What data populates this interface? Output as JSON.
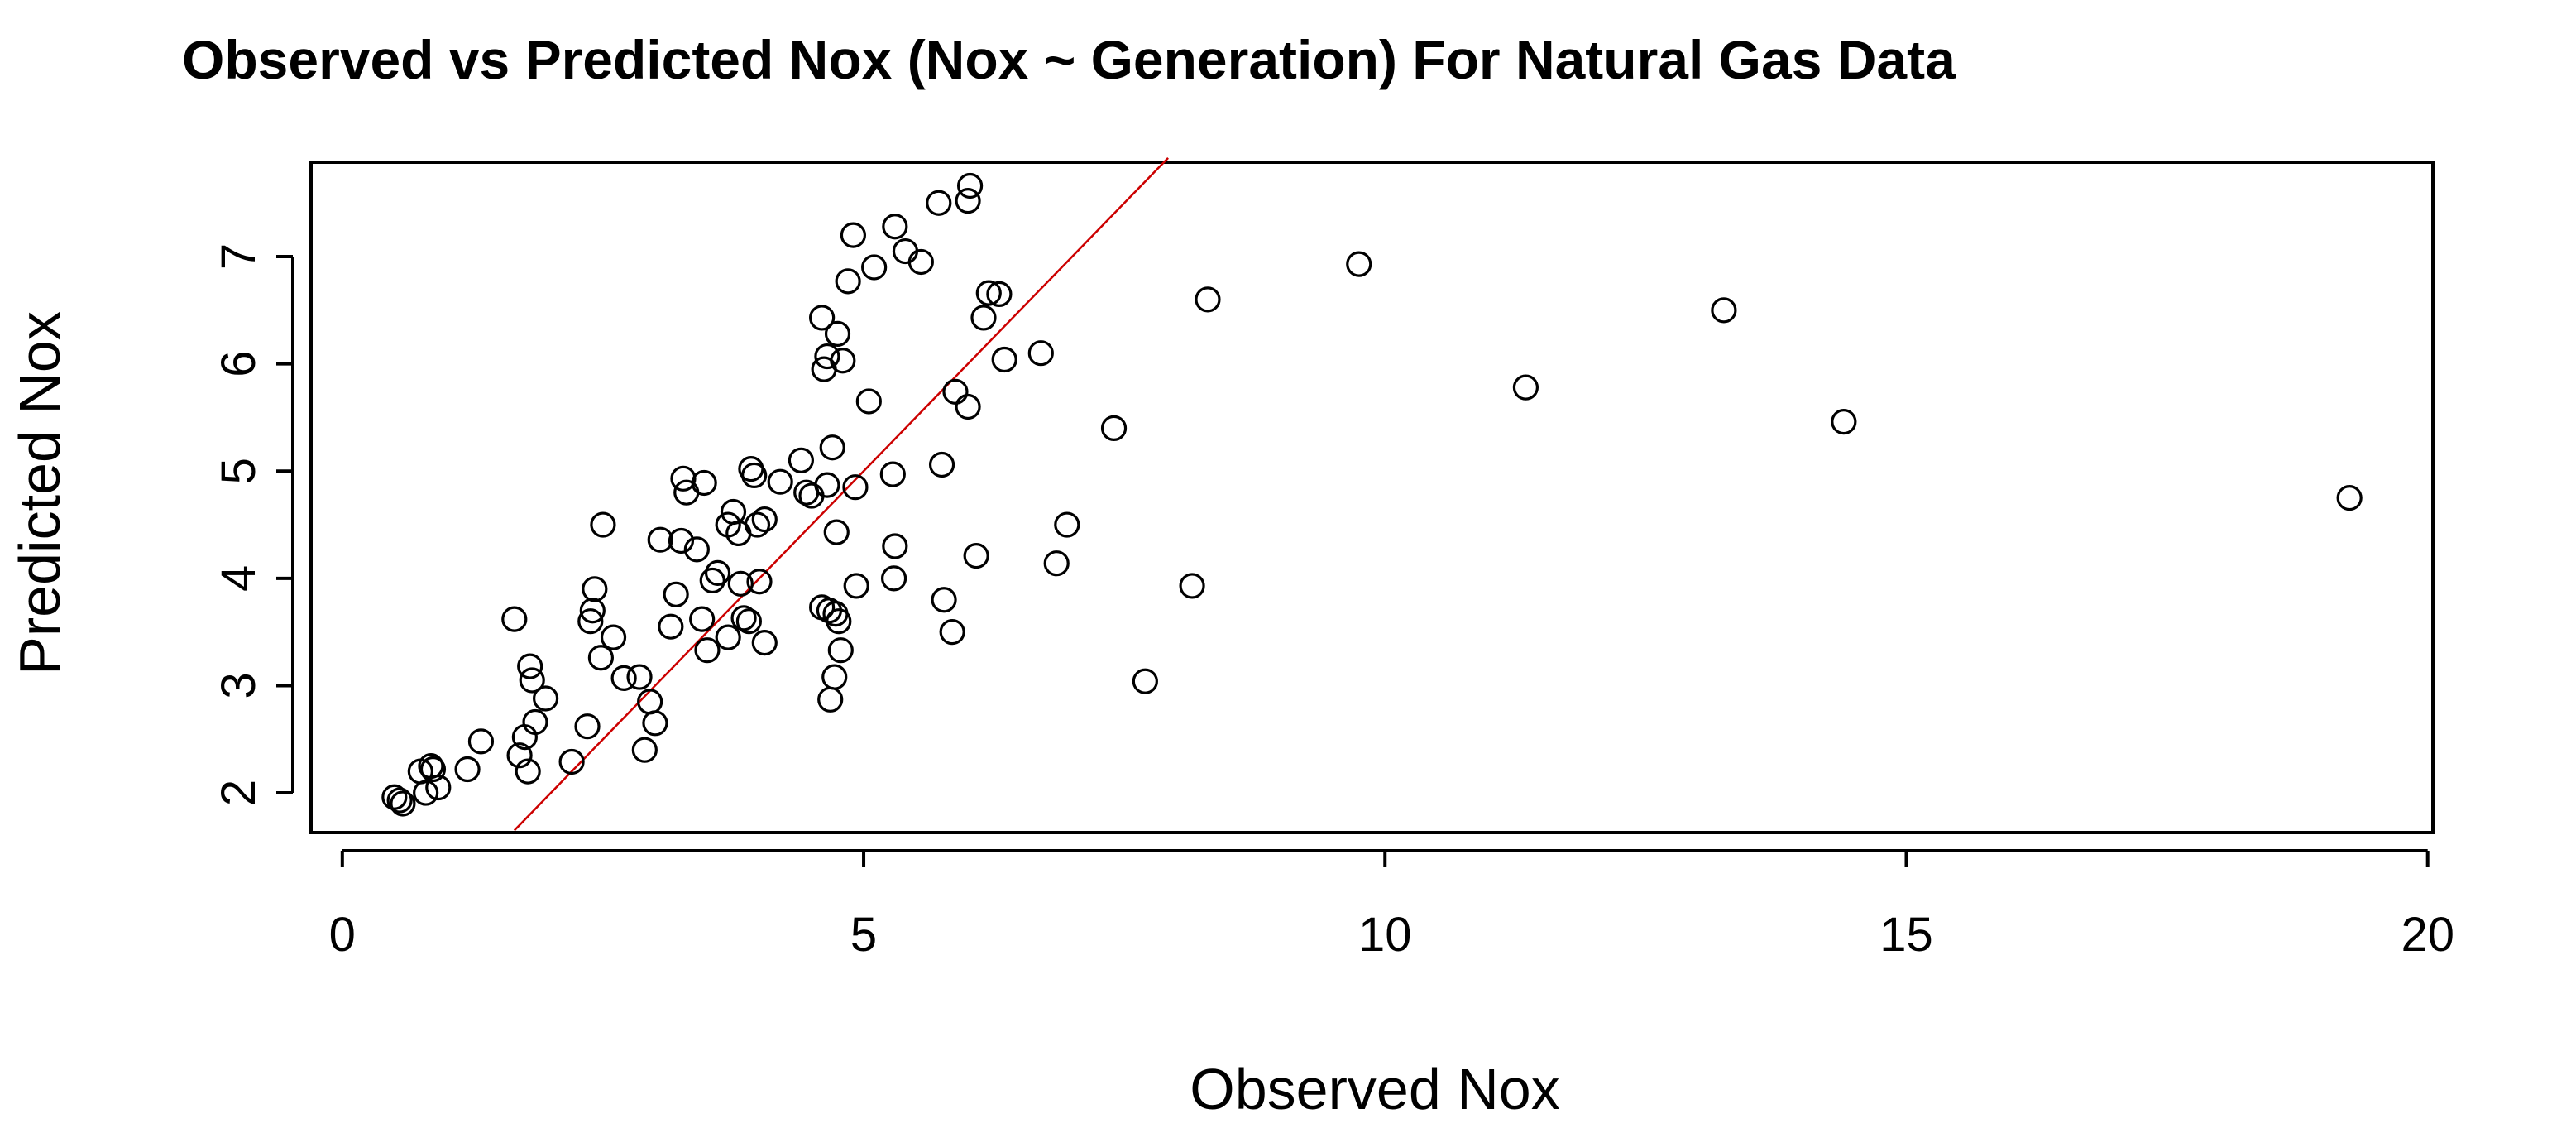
{
  "chart_data": {
    "type": "scatter",
    "title": "Observed vs Predicted Nox (Nox ~ Generation) For Natural Gas Data",
    "xlabel": "Observed Nox",
    "ylabel": "Predicted Nox",
    "xlim": [
      -0.3,
      20.05
    ],
    "ylim": [
      1.63,
      7.88
    ],
    "x_ticks": [
      0,
      5,
      10,
      15,
      20
    ],
    "y_ticks": [
      2,
      3,
      4,
      5,
      6,
      7
    ],
    "x_tick_labels": [
      "0",
      "5",
      "10",
      "15",
      "20"
    ],
    "y_tick_labels": [
      "2",
      "3",
      "4",
      "5",
      "6",
      "7"
    ],
    "grid": false,
    "point_marker": "open-circle",
    "point_color": "#000000",
    "reference_line": {
      "type": "identity",
      "color": "#cc0000",
      "x": [
        1.65,
        7.92
      ],
      "y": [
        1.65,
        7.92
      ]
    },
    "points": [
      {
        "x": 0.5,
        "y": 1.96
      },
      {
        "x": 0.55,
        "y": 1.93
      },
      {
        "x": 0.58,
        "y": 1.9
      },
      {
        "x": 0.75,
        "y": 2.2
      },
      {
        "x": 0.8,
        "y": 2.0
      },
      {
        "x": 0.85,
        "y": 2.25
      },
      {
        "x": 0.87,
        "y": 2.22
      },
      {
        "x": 0.92,
        "y": 2.05
      },
      {
        "x": 1.2,
        "y": 2.22
      },
      {
        "x": 1.33,
        "y": 2.48
      },
      {
        "x": 1.65,
        "y": 3.62
      },
      {
        "x": 1.7,
        "y": 2.35
      },
      {
        "x": 1.75,
        "y": 2.52
      },
      {
        "x": 1.78,
        "y": 2.2
      },
      {
        "x": 1.8,
        "y": 3.18
      },
      {
        "x": 1.82,
        "y": 3.05
      },
      {
        "x": 1.85,
        "y": 2.66
      },
      {
        "x": 1.95,
        "y": 2.88
      },
      {
        "x": 2.2,
        "y": 2.29
      },
      {
        "x": 2.35,
        "y": 2.62
      },
      {
        "x": 2.38,
        "y": 3.6
      },
      {
        "x": 2.4,
        "y": 3.7
      },
      {
        "x": 2.42,
        "y": 3.9
      },
      {
        "x": 2.48,
        "y": 3.26
      },
      {
        "x": 2.5,
        "y": 4.5
      },
      {
        "x": 2.6,
        "y": 3.45
      },
      {
        "x": 2.7,
        "y": 3.07
      },
      {
        "x": 2.85,
        "y": 3.08
      },
      {
        "x": 2.9,
        "y": 2.4
      },
      {
        "x": 2.95,
        "y": 2.85
      },
      {
        "x": 3.0,
        "y": 2.65
      },
      {
        "x": 3.05,
        "y": 4.36
      },
      {
        "x": 3.15,
        "y": 3.55
      },
      {
        "x": 3.2,
        "y": 3.85
      },
      {
        "x": 3.25,
        "y": 4.35
      },
      {
        "x": 3.27,
        "y": 4.93
      },
      {
        "x": 3.3,
        "y": 4.8
      },
      {
        "x": 3.4,
        "y": 4.27
      },
      {
        "x": 3.45,
        "y": 3.62
      },
      {
        "x": 3.47,
        "y": 4.89
      },
      {
        "x": 3.5,
        "y": 3.33
      },
      {
        "x": 3.55,
        "y": 3.98
      },
      {
        "x": 3.6,
        "y": 4.05
      },
      {
        "x": 3.7,
        "y": 3.45
      },
      {
        "x": 3.7,
        "y": 4.5
      },
      {
        "x": 3.75,
        "y": 4.62
      },
      {
        "x": 3.8,
        "y": 4.42
      },
      {
        "x": 3.82,
        "y": 3.95
      },
      {
        "x": 3.85,
        "y": 3.63
      },
      {
        "x": 3.9,
        "y": 3.6
      },
      {
        "x": 3.92,
        "y": 5.02
      },
      {
        "x": 3.95,
        "y": 4.96
      },
      {
        "x": 3.98,
        "y": 4.5
      },
      {
        "x": 4.0,
        "y": 3.97
      },
      {
        "x": 4.05,
        "y": 3.4
      },
      {
        "x": 4.05,
        "y": 4.55
      },
      {
        "x": 4.2,
        "y": 4.9
      },
      {
        "x": 4.4,
        "y": 5.1
      },
      {
        "x": 4.45,
        "y": 4.8
      },
      {
        "x": 4.5,
        "y": 4.77
      },
      {
        "x": 4.6,
        "y": 3.73
      },
      {
        "x": 4.6,
        "y": 6.43
      },
      {
        "x": 4.62,
        "y": 5.95
      },
      {
        "x": 4.65,
        "y": 6.07
      },
      {
        "x": 4.65,
        "y": 4.87
      },
      {
        "x": 4.67,
        "y": 3.7
      },
      {
        "x": 4.68,
        "y": 2.87
      },
      {
        "x": 4.7,
        "y": 5.22
      },
      {
        "x": 4.72,
        "y": 3.08
      },
      {
        "x": 4.73,
        "y": 3.67
      },
      {
        "x": 4.74,
        "y": 4.43
      },
      {
        "x": 4.75,
        "y": 6.28
      },
      {
        "x": 4.76,
        "y": 3.6
      },
      {
        "x": 4.78,
        "y": 3.33
      },
      {
        "x": 4.8,
        "y": 6.03
      },
      {
        "x": 4.85,
        "y": 6.77
      },
      {
        "x": 4.9,
        "y": 7.2
      },
      {
        "x": 4.92,
        "y": 4.85
      },
      {
        "x": 4.93,
        "y": 3.93
      },
      {
        "x": 5.05,
        "y": 5.65
      },
      {
        "x": 5.1,
        "y": 6.9
      },
      {
        "x": 5.28,
        "y": 4.97
      },
      {
        "x": 5.29,
        "y": 4.0
      },
      {
        "x": 5.3,
        "y": 4.3
      },
      {
        "x": 5.3,
        "y": 7.28
      },
      {
        "x": 5.4,
        "y": 7.05
      },
      {
        "x": 5.55,
        "y": 6.95
      },
      {
        "x": 5.72,
        "y": 7.5
      },
      {
        "x": 5.75,
        "y": 5.06
      },
      {
        "x": 5.77,
        "y": 3.8
      },
      {
        "x": 5.85,
        "y": 3.5
      },
      {
        "x": 5.88,
        "y": 5.74
      },
      {
        "x": 6.0,
        "y": 5.6
      },
      {
        "x": 6.0,
        "y": 7.52
      },
      {
        "x": 6.02,
        "y": 7.66
      },
      {
        "x": 6.08,
        "y": 4.21
      },
      {
        "x": 6.15,
        "y": 6.43
      },
      {
        "x": 6.2,
        "y": 6.66
      },
      {
        "x": 6.3,
        "y": 6.65
      },
      {
        "x": 6.35,
        "y": 6.04
      },
      {
        "x": 6.7,
        "y": 6.1
      },
      {
        "x": 6.85,
        "y": 4.14
      },
      {
        "x": 6.95,
        "y": 4.5
      },
      {
        "x": 7.4,
        "y": 5.4
      },
      {
        "x": 7.7,
        "y": 3.04
      },
      {
        "x": 8.15,
        "y": 3.93
      },
      {
        "x": 8.3,
        "y": 6.6
      },
      {
        "x": 9.75,
        "y": 6.93
      },
      {
        "x": 11.35,
        "y": 5.78
      },
      {
        "x": 13.25,
        "y": 6.5
      },
      {
        "x": 14.4,
        "y": 5.46
      },
      {
        "x": 19.25,
        "y": 4.75
      }
    ]
  }
}
